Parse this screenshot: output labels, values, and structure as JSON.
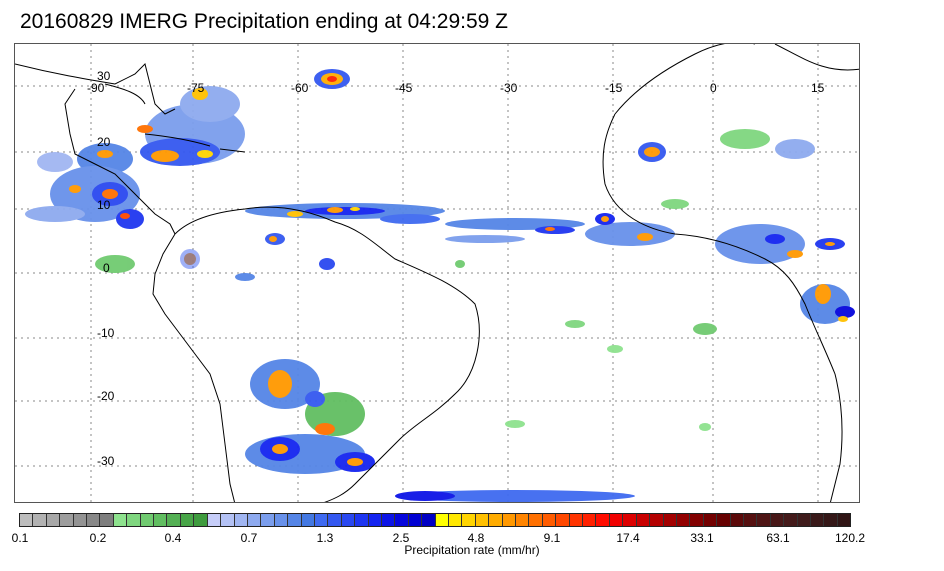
{
  "title": "20160829 IMERG Precipitation ending at 04:29:59 Z",
  "map": {
    "lon_labels": [
      "-90",
      "-75",
      "-60",
      "-45",
      "-30",
      "-15",
      "0",
      "15"
    ],
    "lat_labels": [
      "30",
      "20",
      "10",
      "0",
      "-10",
      "-20",
      "-30"
    ],
    "grid_style": "dotted",
    "coast_color": "#000000"
  },
  "colorbar": {
    "tick_labels": [
      "0.1",
      "0.2",
      "0.4",
      "0.7",
      "1.3",
      "2.5",
      "4.8",
      "9.1",
      "17.4",
      "33.1",
      "63.1",
      "120.2"
    ],
    "label": "Precipitation rate (mm/hr)",
    "colors": [
      "#bdbdbd",
      "#b2b2b2",
      "#a8a8a8",
      "#9d9d9d",
      "#939393",
      "#888888",
      "#7e7e7e",
      "#8ee28e",
      "#7fd67f",
      "#70ca70",
      "#61be61",
      "#54b054",
      "#48a548",
      "#3e9b3e",
      "#c6cdf8",
      "#b4c2f5",
      "#a1b6f2",
      "#8eaaef",
      "#7b9eed",
      "#6891ea",
      "#5585e6",
      "#4378e2",
      "#3f6af0",
      "#3458f0",
      "#2a48f0",
      "#1f36f0",
      "#1424f0",
      "#0c14e6",
      "#0606dc",
      "#0000d2",
      "#0000c4",
      "#ffff00",
      "#ffe800",
      "#ffd400",
      "#ffc000",
      "#ffac00",
      "#ff9800",
      "#ff8400",
      "#ff7000",
      "#ff5c00",
      "#ff4800",
      "#ff3400",
      "#ff2000",
      "#ff0c00",
      "#f00000",
      "#dc0000",
      "#c80000",
      "#b40000",
      "#a20000",
      "#920000",
      "#820000",
      "#720000",
      "#660000",
      "#5c0a0a",
      "#551010",
      "#4e1414",
      "#481818",
      "#441a1a",
      "#3f1b1b",
      "#3a1a1a",
      "#351818",
      "#301515"
    ]
  }
}
